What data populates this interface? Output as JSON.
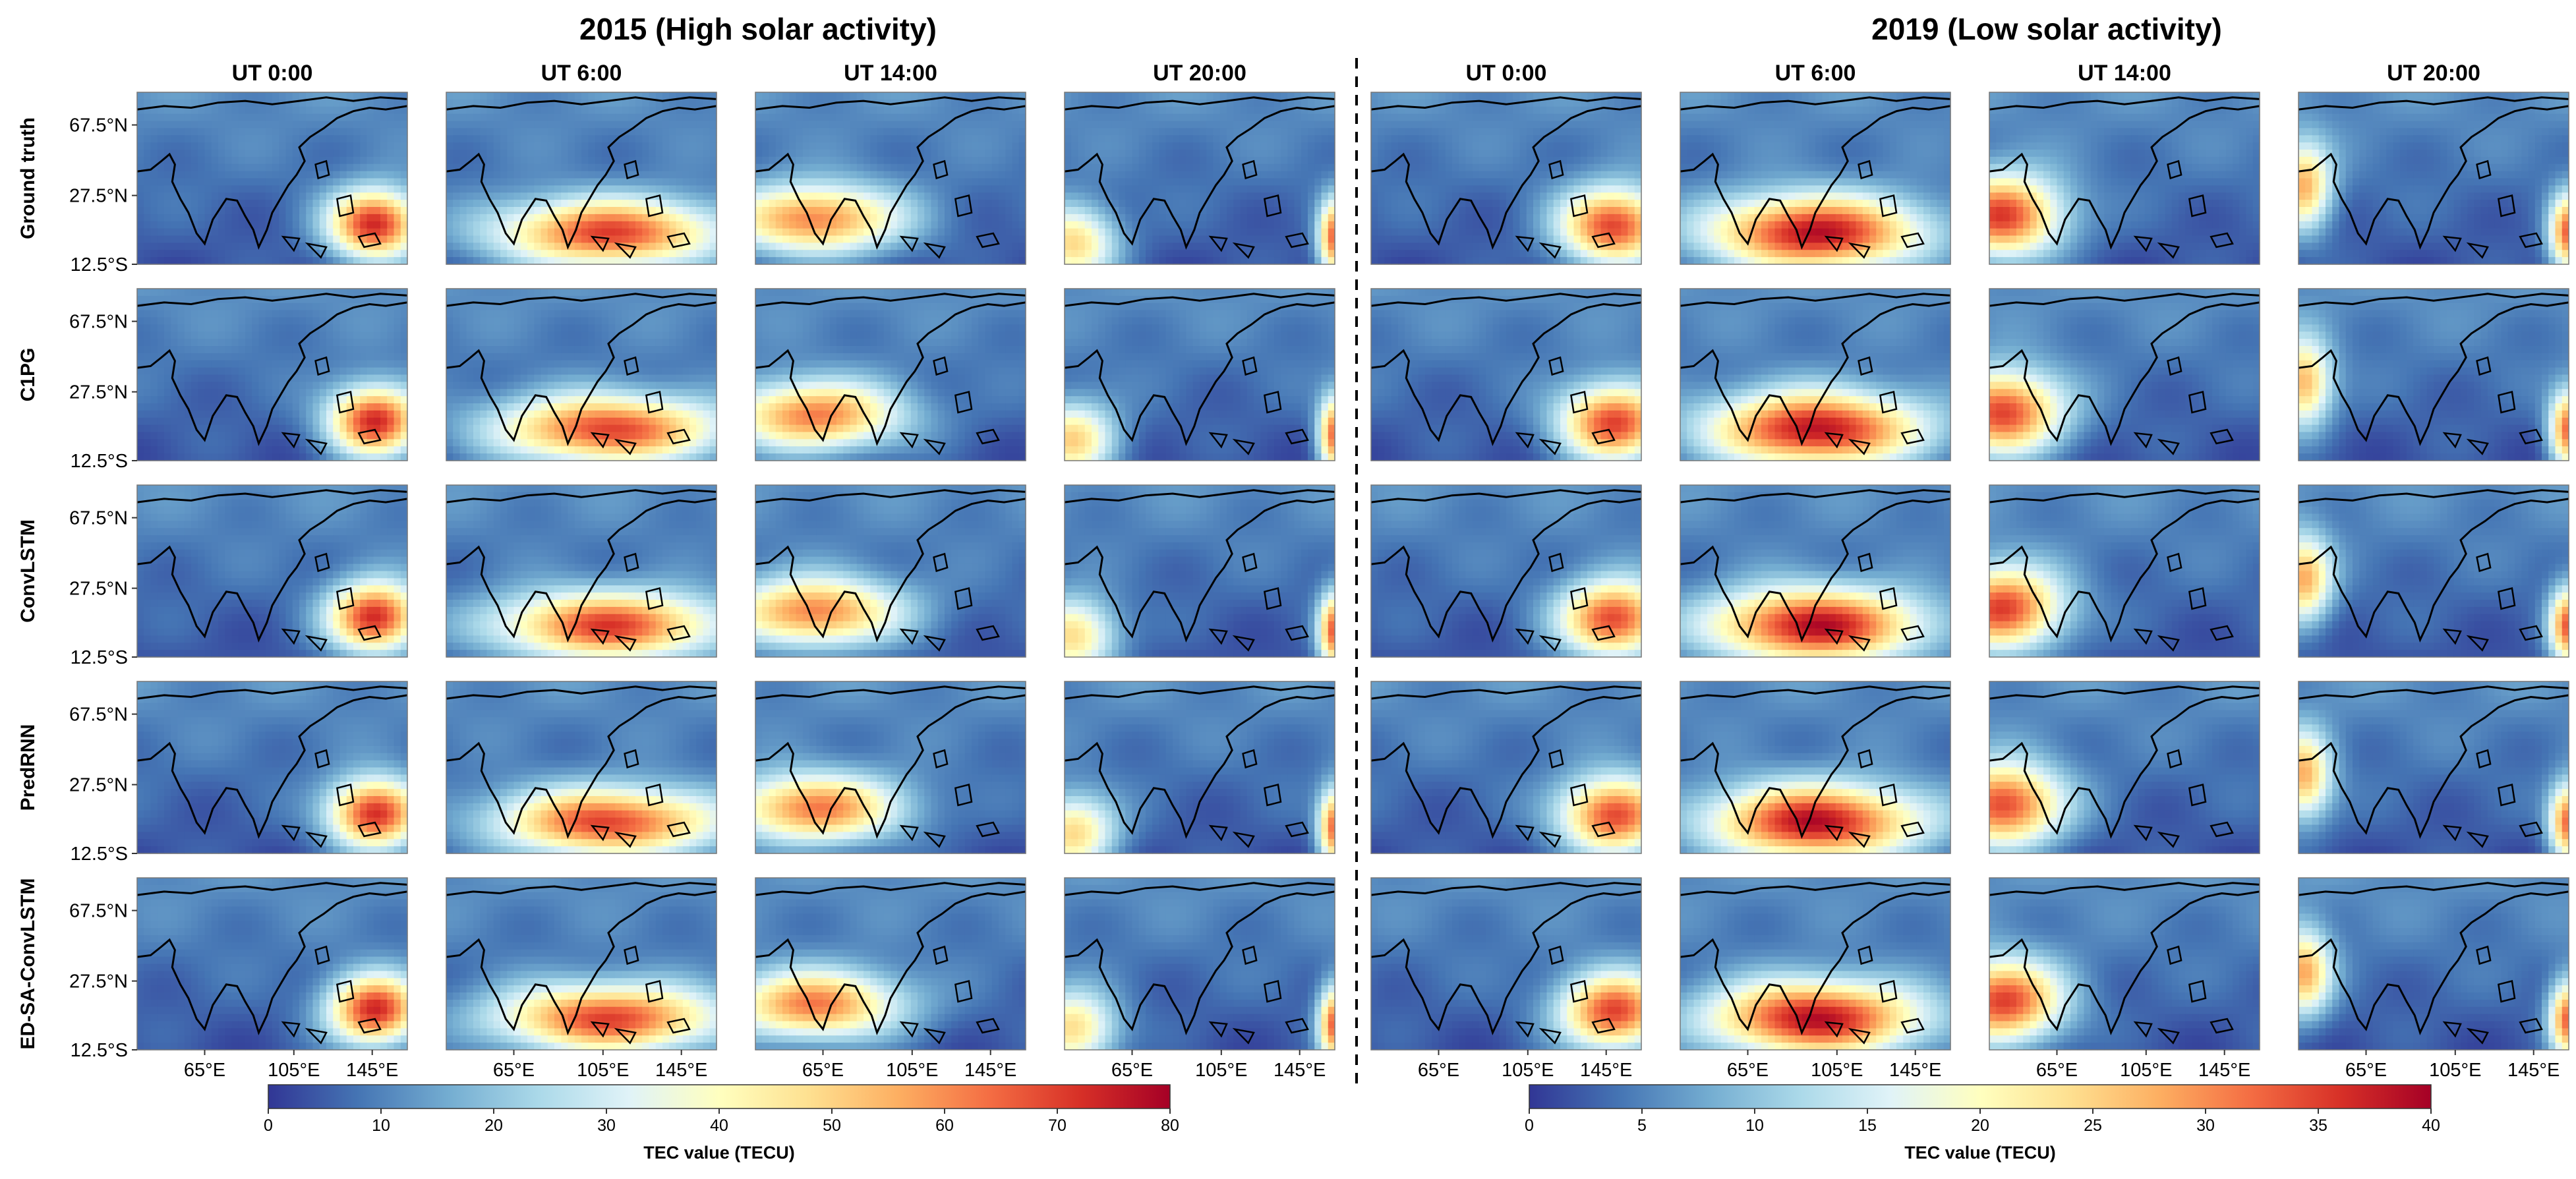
{
  "chart_data": {
    "type": "heatmap",
    "description_of_grid": "TEC maps over Asia, 5 model rows x 4 UT columns per period",
    "periods": [
      {
        "title": "2015 (High solar activity)",
        "colorbar": {
          "label": "TEC value (TECU)",
          "range": [
            0,
            80
          ],
          "ticks": [
            "0",
            "10",
            "20",
            "30",
            "40",
            "50",
            "60",
            "70",
            "80"
          ]
        }
      },
      {
        "title": "2019 (Low solar activity)",
        "colorbar": {
          "label": "TEC value (TECU)",
          "range": [
            0,
            40
          ],
          "ticks": [
            "0",
            "5",
            "10",
            "15",
            "20",
            "25",
            "30",
            "35",
            "40"
          ]
        }
      }
    ],
    "columns": [
      "UT 0:00",
      "UT 6:00",
      "UT 14:00",
      "UT 20:00"
    ],
    "rows": [
      "Ground truth",
      "C1PG",
      "ConvLSTM",
      "PredRNN",
      "ED-SA-ConvLSTM"
    ],
    "y_ticks": [
      "67.5°N",
      "27.5°N",
      "12.5°S"
    ],
    "x_ticks": [
      "65°E",
      "105°E",
      "145°E"
    ],
    "colormap": [
      "#313695",
      "#4575b4",
      "#74add1",
      "#abd9e9",
      "#e0f3f8",
      "#ffffbf",
      "#fee090",
      "#fdae61",
      "#f46d43",
      "#d73027",
      "#a50026"
    ]
  }
}
